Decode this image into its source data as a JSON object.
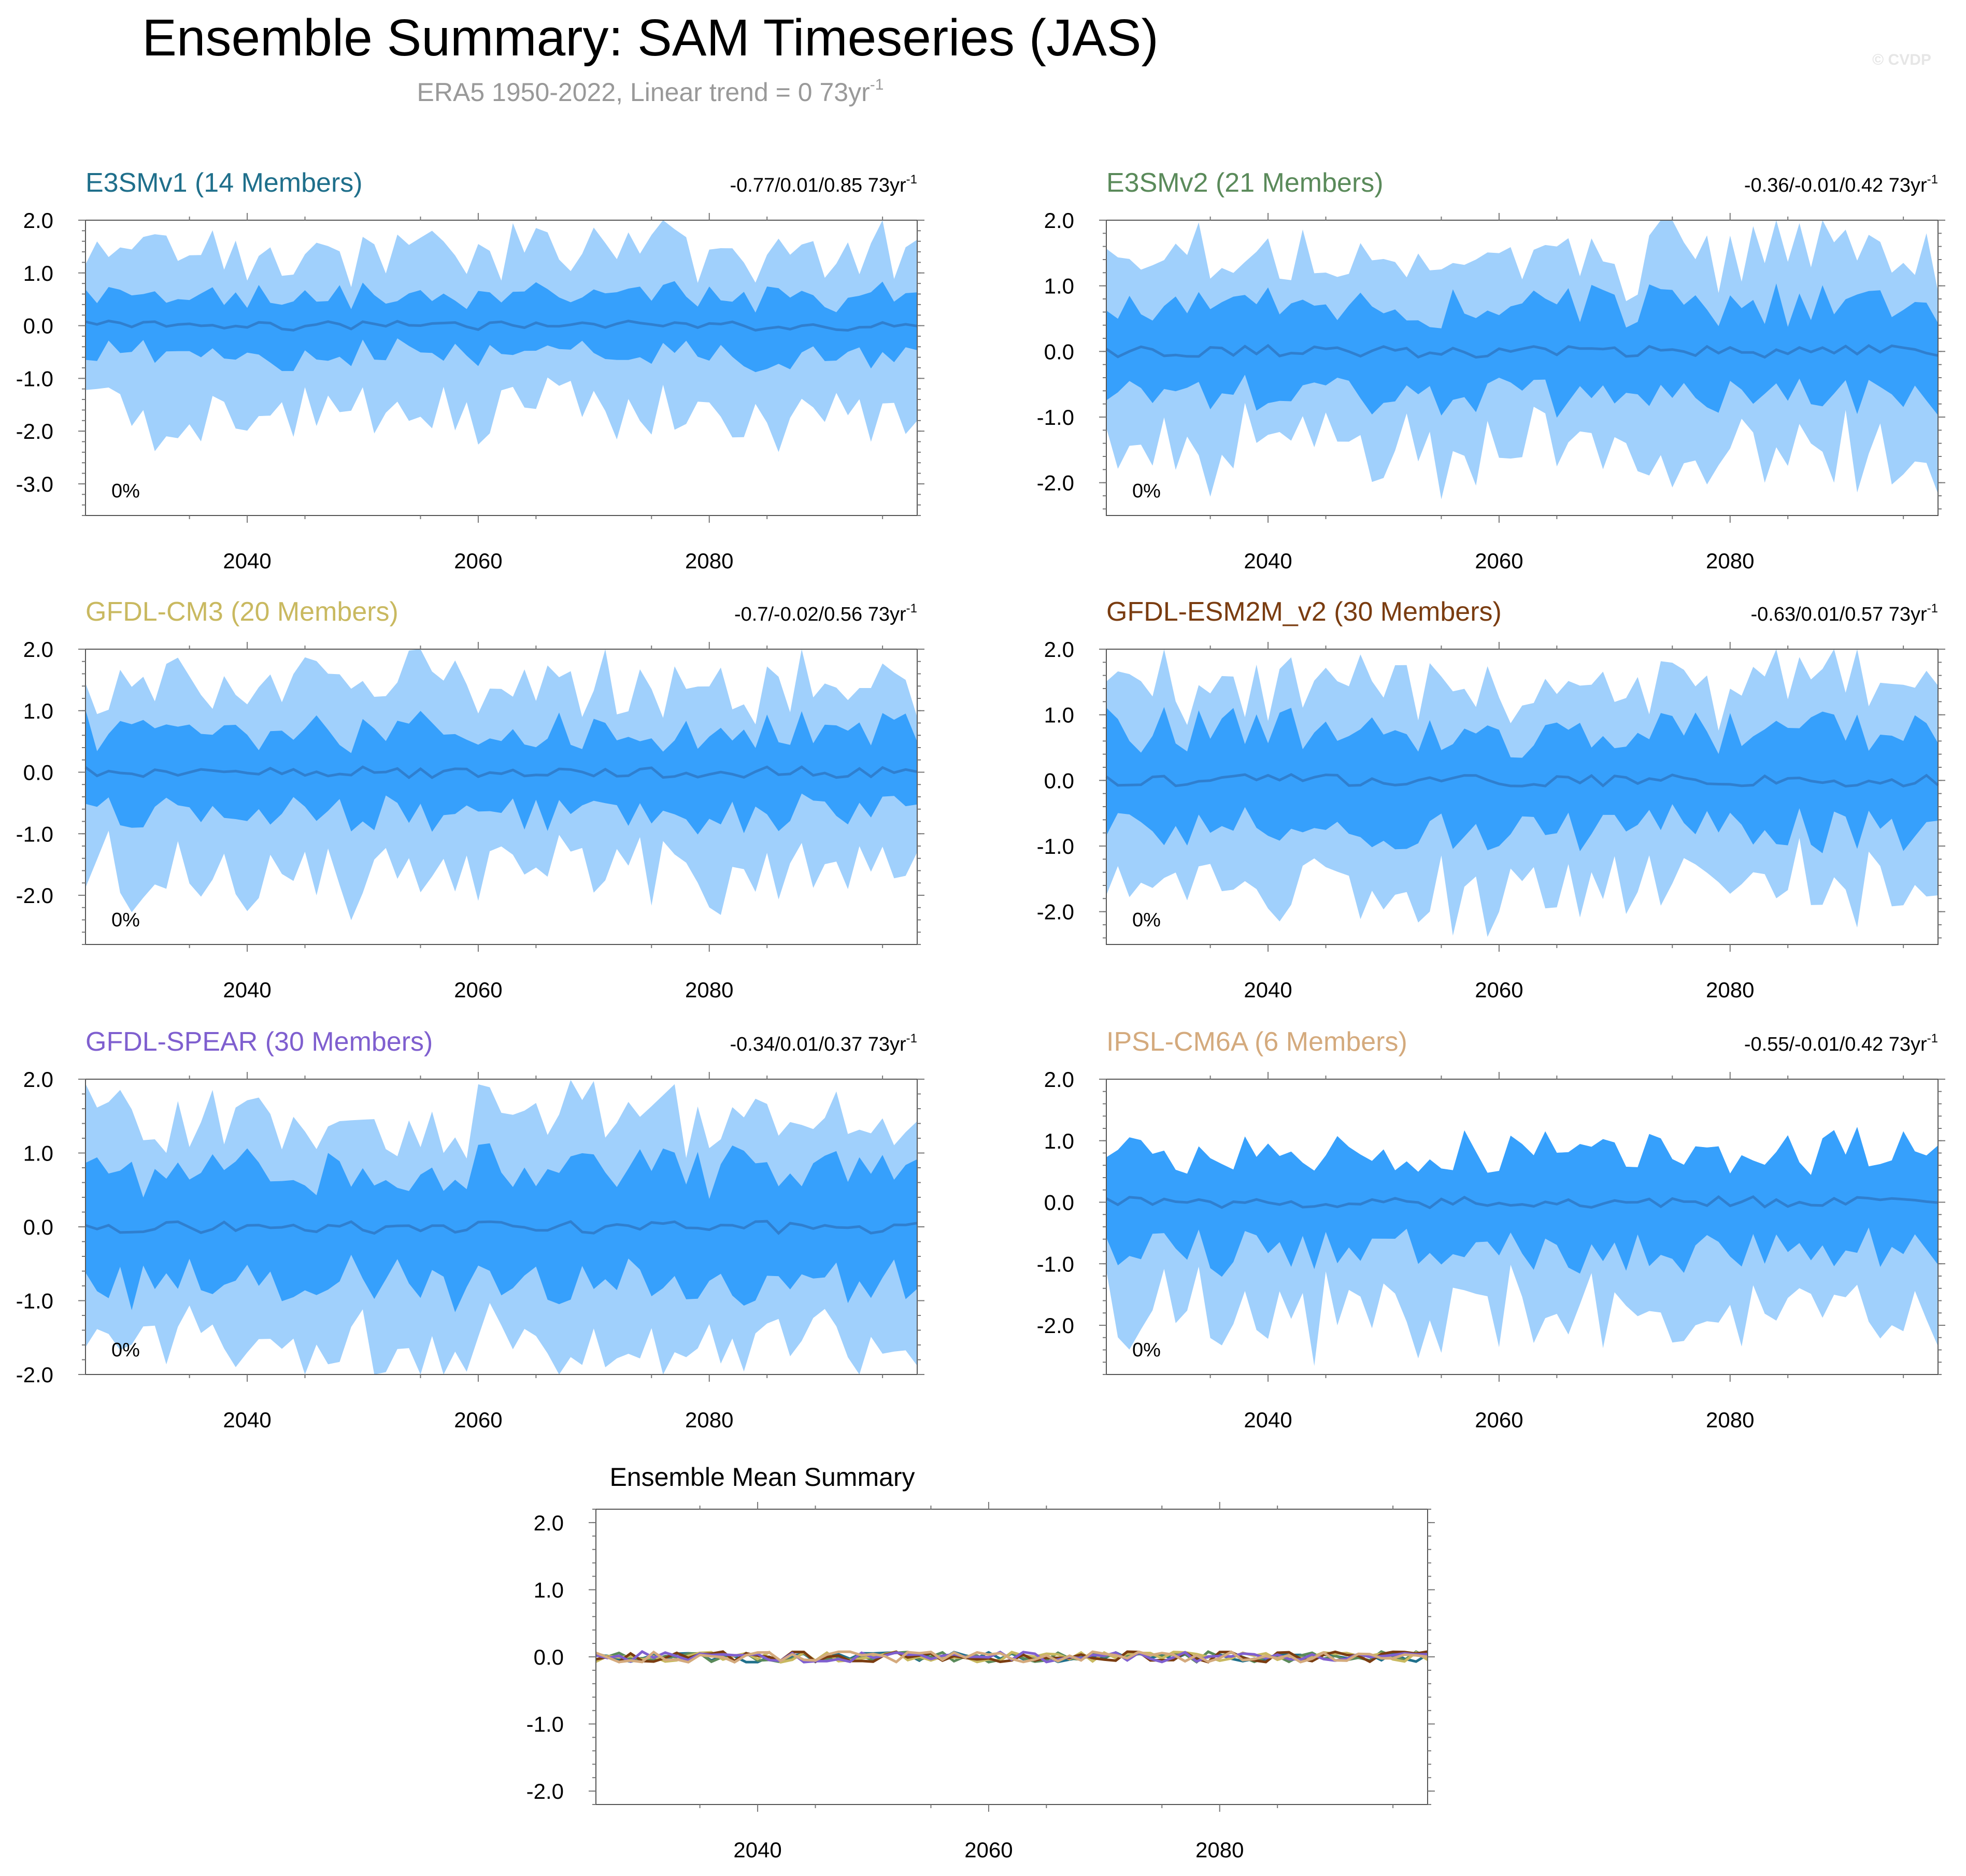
{
  "title": "Ensemble Summary: SAM Timeseries (JAS)",
  "subtitle": "ERA5 1950-2022, Linear trend = 0 73yr",
  "subtitle_sup": "-1",
  "copyright": "© CVDP",
  "colors": {
    "outer_band": "#a0d0fc",
    "inner_band": "#36a0fc",
    "mean_line": "#2f7fcf"
  },
  "chart_data": [
    {
      "type": "area",
      "model": "E3SMv1 (14 Members)",
      "title_color": "#1f6f8b",
      "trend_text": "-0.77/0.01/0.85 73yr",
      "trend_sup": "-1",
      "percent_label": "0%",
      "x_range": [
        2026,
        2098
      ],
      "ylim": [
        -3.6,
        2.0
      ],
      "yticks": [
        2.0,
        1.0,
        0.0,
        -1.0,
        -2.0,
        -3.0
      ],
      "ytick_labels": [
        "2.0",
        "1.0",
        "0.0",
        "-1.0",
        "-2.0",
        "-3.0"
      ],
      "xticks": [
        2040,
        2060,
        2080
      ],
      "xtick_labels": [
        "2040",
        "2060",
        "2080"
      ],
      "outer_amp": 1.6,
      "inner_amp": 0.55,
      "seed": 11
    },
    {
      "type": "area",
      "model": "E3SMv2 (21 Members)",
      "title_color": "#5a8a5a",
      "trend_text": "-0.36/-0.01/0.42 73yr",
      "trend_sup": "-1",
      "percent_label": "0%",
      "x_range": [
        2026,
        2098
      ],
      "ylim": [
        -2.5,
        2.0
      ],
      "yticks": [
        2.0,
        1.0,
        0.0,
        -1.0,
        -2.0
      ],
      "ytick_labels": [
        "2.0",
        "1.0",
        "0.0",
        "-1.0",
        "-2.0"
      ],
      "xticks": [
        2040,
        2060,
        2080
      ],
      "xtick_labels": [
        "2040",
        "2060",
        "2080"
      ],
      "outer_amp": 1.35,
      "inner_amp": 0.7,
      "seed": 23
    },
    {
      "type": "area",
      "model": "GFDL-CM3 (20 Members)",
      "title_color": "#c9b960",
      "trend_text": "-0.7/-0.02/0.56 73yr",
      "trend_sup": "-1",
      "percent_label": "0%",
      "x_range": [
        2026,
        2098
      ],
      "ylim": [
        -2.8,
        2.0
      ],
      "yticks": [
        2.0,
        1.0,
        0.0,
        -1.0,
        -2.0
      ],
      "ytick_labels": [
        "2.0",
        "1.0",
        "0.0",
        "-1.0",
        "-2.0"
      ],
      "xticks": [
        2040,
        2060,
        2080
      ],
      "xtick_labels": [
        "2040",
        "2060",
        "2080"
      ],
      "outer_amp": 1.45,
      "inner_amp": 0.65,
      "seed": 37
    },
    {
      "type": "area",
      "model": "GFDL-ESM2M_v2 (30 Members)",
      "title_color": "#7a3c10",
      "trend_text": "-0.63/0.01/0.57 73yr",
      "trend_sup": "-1",
      "percent_label": "0%",
      "x_range": [
        2026,
        2098
      ],
      "ylim": [
        -2.5,
        2.0
      ],
      "yticks": [
        2.0,
        1.0,
        0.0,
        -1.0,
        -2.0
      ],
      "ytick_labels": [
        "2.0",
        "1.0",
        "0.0",
        "-1.0",
        "-2.0"
      ],
      "xticks": [
        2040,
        2060,
        2080
      ],
      "xtick_labels": [
        "2040",
        "2060",
        "2080"
      ],
      "outer_amp": 1.35,
      "inner_amp": 0.75,
      "seed": 41
    },
    {
      "type": "area",
      "model": "GFDL-SPEAR (30 Members)",
      "title_color": "#7f5fcf",
      "trend_text": "-0.34/0.01/0.37 73yr",
      "trend_sup": "-1",
      "percent_label": "0%",
      "x_range": [
        2026,
        2098
      ],
      "ylim": [
        -2.0,
        2.0
      ],
      "yticks": [
        2.0,
        1.0,
        0.0,
        -1.0,
        -2.0
      ],
      "ytick_labels": [
        "2.0",
        "1.0",
        "0.0",
        "-1.0",
        "-2.0"
      ],
      "xticks": [
        2040,
        2060,
        2080
      ],
      "xtick_labels": [
        "2040",
        "2060",
        "2080"
      ],
      "outer_amp": 1.35,
      "inner_amp": 0.75,
      "seed": 53
    },
    {
      "type": "area",
      "model": "IPSL-CM6A (6 Members)",
      "title_color": "#d4aa7d",
      "trend_text": "-0.55/-0.01/0.42 73yr",
      "trend_sup": "-1",
      "percent_label": "0%",
      "x_range": [
        2026,
        2098
      ],
      "ylim": [
        -2.8,
        2.0
      ],
      "yticks": [
        2.0,
        1.0,
        0.0,
        -1.0,
        -2.0
      ],
      "ytick_labels": [
        "2.0",
        "1.0",
        "0.0",
        "-1.0",
        "-2.0"
      ],
      "xticks": [
        2040,
        2060,
        2080
      ],
      "xtick_labels": [
        "2040",
        "2060",
        "2080"
      ],
      "outer_amp": 1.5,
      "inner_amp": 0.8,
      "outer_on_bottom_only": true,
      "seed": 67
    },
    {
      "type": "line",
      "title": "Ensemble Mean Summary",
      "x_range": [
        2026,
        2098
      ],
      "ylim": [
        -2.2,
        2.2
      ],
      "yticks": [
        2.0,
        1.0,
        0.0,
        -1.0,
        -2.0
      ],
      "ytick_labels": [
        "2.0",
        "1.0",
        "0.0",
        "-1.0",
        "-2.0"
      ],
      "xticks": [
        2040,
        2060,
        2080
      ],
      "xtick_labels": [
        "2040",
        "2060",
        "2080"
      ],
      "series": [
        {
          "name": "E3SMv1",
          "color": "#1f6f8b",
          "seed": 101
        },
        {
          "name": "E3SMv2",
          "color": "#5a8a5a",
          "seed": 102
        },
        {
          "name": "GFDL-CM3",
          "color": "#c9b960",
          "seed": 103
        },
        {
          "name": "GFDL-ESM2M_v2",
          "color": "#7a3c10",
          "seed": 104
        },
        {
          "name": "GFDL-SPEAR",
          "color": "#7f5fcf",
          "seed": 105
        },
        {
          "name": "IPSL-CM6A",
          "color": "#d4aa7d",
          "seed": 106
        }
      ],
      "amplitude": 0.08
    }
  ]
}
